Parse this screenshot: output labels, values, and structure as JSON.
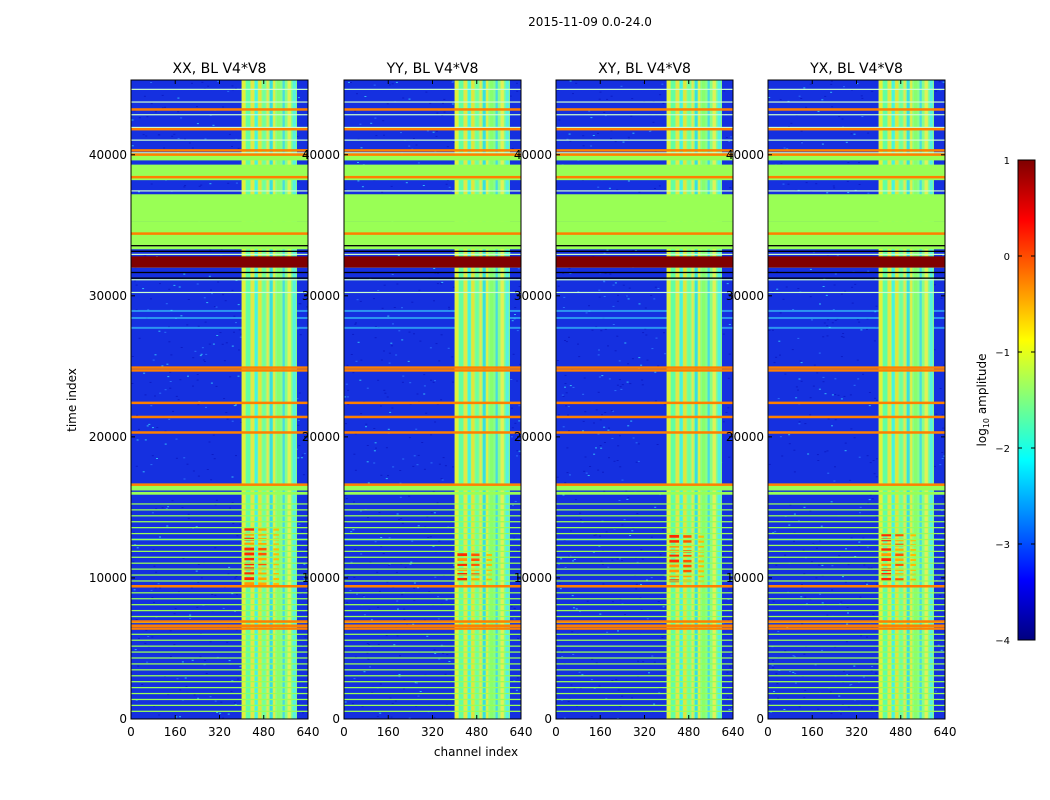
{
  "figure": {
    "suptitle": "2015-11-09 0.0-24.0",
    "xlabel": "channel index",
    "ylabel": "time index"
  },
  "colorbar": {
    "label_prefix": "log",
    "label_sub": "10",
    "label_suffix": " amplitude",
    "min": -4,
    "max": 1,
    "ticks": [
      "1",
      "0",
      "−1",
      "−2",
      "−3",
      "−4"
    ],
    "stops": [
      "#00007f",
      "#0000ff",
      "#007fff",
      "#00ffff",
      "#7fff7f",
      "#ffff00",
      "#ff7f00",
      "#ff0000",
      "#7f0000"
    ]
  },
  "chart_data": {
    "type": "heatmap",
    "panels": [
      {
        "title": "XX, BL V4*V8",
        "hot_top": 13500,
        "hot_bottom": 9500
      },
      {
        "title": "YY, BL V4*V8",
        "hot_top": 11600,
        "hot_bottom": 9800
      },
      {
        "title": "XY, BL V4*V8",
        "hot_top": 13000,
        "hot_bottom": 9700
      },
      {
        "title": "YX, BL V4*V8",
        "hot_top": 13000,
        "hot_bottom": 9800
      }
    ],
    "x_ticks": [
      "0",
      "160",
      "320",
      "480",
      "640"
    ],
    "y_ticks": [
      "0",
      "10000",
      "20000",
      "30000",
      "40000"
    ],
    "xlim": [
      0,
      640
    ],
    "ylim": [
      0,
      45300
    ],
    "rfi_channel_range": [
      400,
      600
    ],
    "flagged_time_bands": [
      [
        35300,
        37200
      ],
      [
        38200,
        39300
      ],
      [
        39600,
        40100
      ]
    ],
    "saturated_time_band": [
      32000,
      32800
    ],
    "bright_time_lines": [
      43300,
      41900,
      40400,
      40100,
      38500,
      34500,
      25000,
      24800,
      22500,
      21500,
      20400,
      16700,
      9500,
      7000,
      6700,
      6500
    ]
  },
  "colors": {
    "background_low": "#1530e0",
    "flagged": "#99ff55",
    "saturated": "#7f0000",
    "rfi_line": "#ff7f00"
  }
}
